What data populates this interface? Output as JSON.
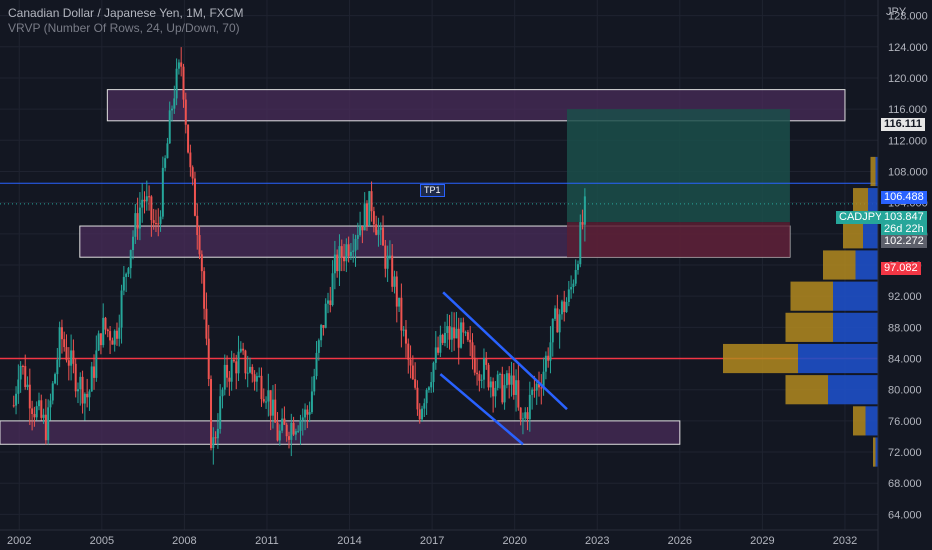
{
  "header": {
    "title": "Canadian Dollar / Japanese Yen, 1M, FXCM",
    "indicator": "VRVP (Number Of Rows, 24, Up/Down, 70)",
    "currency": "JPY"
  },
  "colors": {
    "background": "#131722",
    "up": "#26a69a",
    "down": "#ef5350",
    "zone_fill": "#4a2c59",
    "zone_border": "#e0e0e0",
    "channel": "#2962ff",
    "blue_line": "#2962ff",
    "red_line": "#f23645",
    "vp_up": "#1e4fc7",
    "vp_down": "#b38a1e",
    "target": "#1b4f4a",
    "stop": "#5b1f33"
  },
  "labels": {
    "tp1": "TP1",
    "symbol": "CADJPY",
    "price_last": "103.847",
    "countdown": "26d 22h",
    "price_blue": "106.488",
    "price_zone": "116.111",
    "price_grey": "102.272",
    "price_red": "97.082"
  },
  "chart_data": {
    "type": "candlestick",
    "title": "Canadian Dollar / Japanese Yen, 1M, FXCM",
    "ylim": [
      62,
      130
    ],
    "y_ticks": [
      "64.000",
      "68.000",
      "72.000",
      "76.000",
      "80.000",
      "84.000",
      "88.000",
      "92.000",
      "96.000",
      "100.000",
      "104.000",
      "108.000",
      "112.000",
      "116.000",
      "120.000",
      "124.000",
      "128.000"
    ],
    "x_ticks": [
      "2002",
      "2005",
      "2008",
      "2011",
      "2014",
      "2017",
      "2020",
      "2023",
      "2026",
      "2029",
      "2032"
    ],
    "x_range": [
      2001.3,
      2033.2
    ],
    "price_path": [
      [
        2001.8,
        78
      ],
      [
        2002.0,
        84
      ],
      [
        2002.5,
        78
      ],
      [
        2003.0,
        75
      ],
      [
        2003.5,
        87
      ],
      [
        2004.0,
        82
      ],
      [
        2004.5,
        79
      ],
      [
        2005.0,
        88
      ],
      [
        2005.5,
        87
      ],
      [
        2006.0,
        98
      ],
      [
        2006.5,
        105
      ],
      [
        2007.0,
        100
      ],
      [
        2007.6,
        118
      ],
      [
        2007.9,
        122
      ],
      [
        2008.2,
        108
      ],
      [
        2008.6,
        98
      ],
      [
        2009.0,
        72
      ],
      [
        2009.5,
        82
      ],
      [
        2010.0,
        84
      ],
      [
        2010.5,
        82
      ],
      [
        2011.0,
        80
      ],
      [
        2011.4,
        74
      ],
      [
        2012.0,
        76
      ],
      [
        2012.5,
        77
      ],
      [
        2013.0,
        88
      ],
      [
        2013.5,
        96
      ],
      [
        2014.0,
        99
      ],
      [
        2014.8,
        104
      ],
      [
        2015.2,
        98
      ],
      [
        2015.6,
        94
      ],
      [
        2016.0,
        86
      ],
      [
        2016.5,
        77
      ],
      [
        2017.0,
        83
      ],
      [
        2017.5,
        87
      ],
      [
        2018.0,
        87
      ],
      [
        2018.5,
        84
      ],
      [
        2019.0,
        82
      ],
      [
        2019.5,
        80
      ],
      [
        2020.0,
        81
      ],
      [
        2020.2,
        75
      ],
      [
        2020.6,
        79
      ],
      [
        2021.0,
        82
      ],
      [
        2021.5,
        89
      ],
      [
        2022.0,
        92
      ],
      [
        2022.4,
        100
      ],
      [
        2022.6,
        103.8
      ]
    ],
    "zones": [
      {
        "x0": 2005.2,
        "x1": 2032.0,
        "y0": 114.5,
        "y1": 118.5
      },
      {
        "x0": 2004.2,
        "x1": 2030.0,
        "y0": 97.0,
        "y1": 101.0
      },
      {
        "x0": 2001.3,
        "x1": 2026.0,
        "y0": 73.0,
        "y1": 76.0
      }
    ],
    "levels": {
      "blue": 106.488,
      "red": 84.0,
      "last": 103.847
    },
    "channel": {
      "upper": [
        [
          2017.4,
          92.5
        ],
        [
          2021.9,
          77.5
        ]
      ],
      "lower": [
        [
          2017.3,
          82.0
        ],
        [
          2020.3,
          73.0
        ]
      ]
    },
    "position": {
      "x0": 2021.9,
      "x1": 2030.0,
      "entry": 101.5,
      "target": 116.0,
      "stop": 97.0
    },
    "volume_profile": [
      {
        "price": 108,
        "up": 0.01,
        "down": 0.02
      },
      {
        "price": 104,
        "up": 0.04,
        "down": 0.06
      },
      {
        "price": 100,
        "up": 0.06,
        "down": 0.08
      },
      {
        "price": 96,
        "up": 0.09,
        "down": 0.13
      },
      {
        "price": 92,
        "up": 0.18,
        "down": 0.17
      },
      {
        "price": 88,
        "up": 0.18,
        "down": 0.19
      },
      {
        "price": 84,
        "up": 0.32,
        "down": 0.3
      },
      {
        "price": 80,
        "up": 0.2,
        "down": 0.17
      },
      {
        "price": 76,
        "up": 0.05,
        "down": 0.05
      },
      {
        "price": 72,
        "up": 0.01,
        "down": 0.01
      }
    ]
  }
}
